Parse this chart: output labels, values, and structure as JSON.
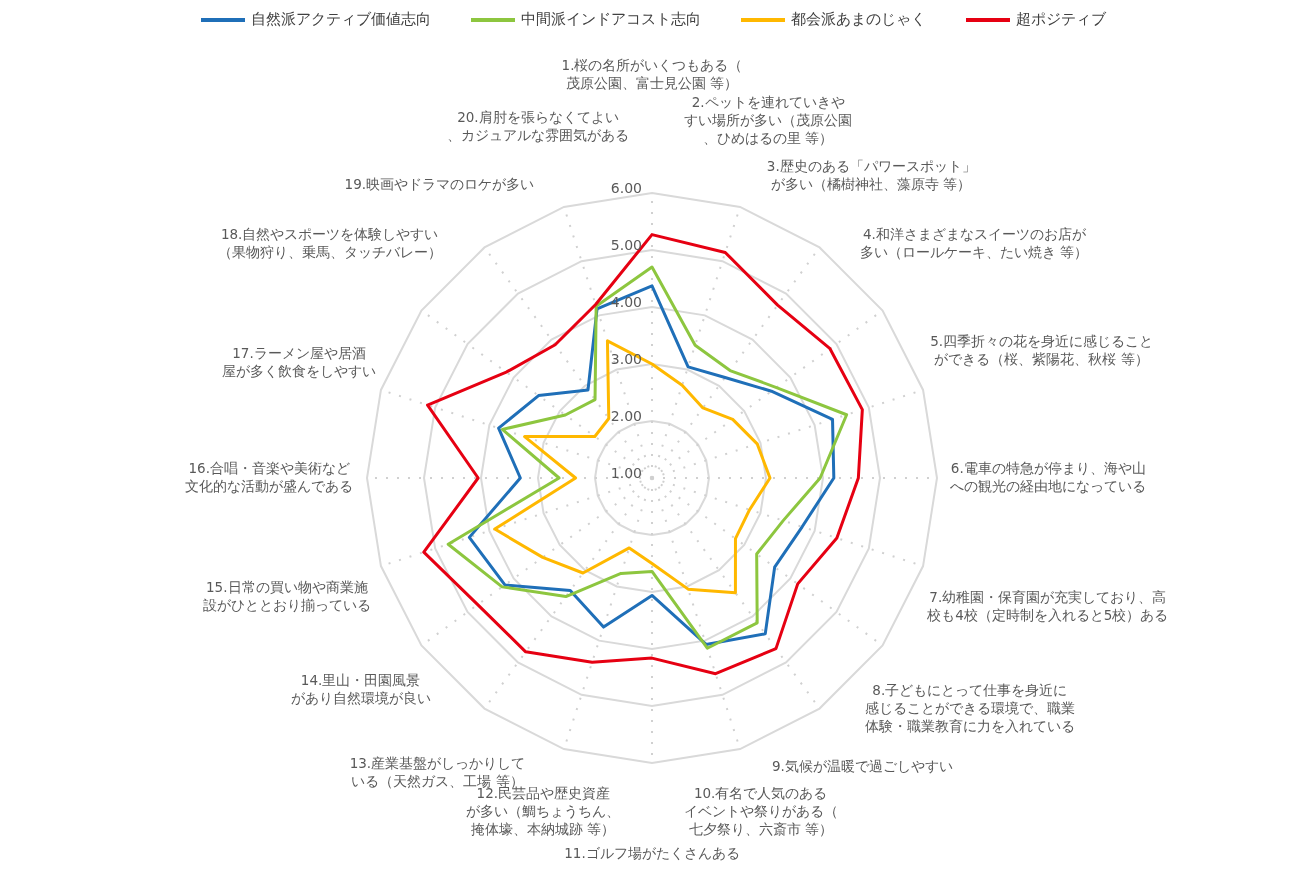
{
  "chart_data": {
    "type": "radar",
    "categories": [
      "1.桜の名所がいくつもある（茂原公園、富士見公園 等）",
      "2.ペットを連れていきやすい場所が多い（茂原公園、ひめはるの里 等）",
      "3.歴史のある「パワースポット」が多い（橘樹神社、藻原寺 等）",
      "4.和洋さまざまなスイーツのお店が多い（ロールケーキ、たい焼き 等）",
      "5.四季折々の花を身近に感じることができる（桜、紫陽花、秋桜 等）",
      "6.電車の特急が停まり、海や山への観光の経由地になっている",
      "7.幼稚園・保育園が充実しており、高校も4校（定時制を入れると5校）ある",
      "8.子どもにとって仕事を身近に感じることができる環境で、職業体験・職業教育に力を入れている",
      "9.気候が温暖で過ごしやすい",
      "10.有名で人気のあるイベントや祭りがある（七夕祭り、六斎市 等）",
      "11.ゴルフ場がたくさんある",
      "12.民芸品や歴史資産が多い（鯛ちょうちん、掩体壕、本納城跡 等）",
      "13.産業基盤がしっかりしている（天然ガス、工場 等）",
      "14.里山・田園風景があり自然環境が良い",
      "15.日常の買い物や商業施設がひととおり揃っている",
      "16.合唱・音楽や美術など文化的な活動が盛んである",
      "17.ラーメン屋や居酒屋が多く飲食をしやすい",
      "18.自然やスポーツを体験しやすい（果物狩り、乗馬、タッチバレー）",
      "19.映画やドラマのロケが多い",
      "20.肩肘を張らなくてよい、カジュアルな雰囲気がある"
    ],
    "series": [
      {
        "name": "自然派アクティブ価値志向",
        "color": "#1f6fb8",
        "values": [
          4.37,
          3.05,
          3.18,
          3.59,
          4.33,
          4.19,
          3.77,
          3.66,
          4.38,
          4.07,
          3.06,
          3.75,
          3.44,
          4.19,
          4.37,
          3.31,
          3.83,
          3.46,
          2.91,
          4.12
        ]
      },
      {
        "name": "中間派インドアコスト志向",
        "color": "#8dc63f",
        "values": [
          4.7,
          3.45,
          3.33,
          3.7,
          4.59,
          3.95,
          3.42,
          3.27,
          4.14,
          4.14,
          2.64,
          2.76,
          3.57,
          4.25,
          4.76,
          2.63,
          3.76,
          2.88,
          2.7,
          4.17
        ]
      },
      {
        "name": "都会派あまのじゃく",
        "color": "#ffb800",
        "values": [
          3.0,
          2.71,
          2.52,
          2.75,
          2.94,
          3.07,
          2.8,
          2.81,
          3.49,
          3.05,
          2.5,
          2.29,
          3.06,
          3.37,
          3.9,
          2.34,
          3.35,
          2.24,
          2.29,
          3.53
        ]
      },
      {
        "name": "超ポジティブ",
        "color": "#e60012",
        "values": [
          5.27,
          5.16,
          4.75,
          4.86,
          4.88,
          4.62,
          4.41,
          4.16,
          4.7,
          4.61,
          4.16,
          4.4,
          4.77,
          4.78,
          5.21,
          4.05,
          5.14,
          4.16,
          3.89,
          4.2
        ]
      }
    ],
    "ylim": [
      1,
      6
    ],
    "yticks": [
      {
        "value": 1,
        "label": "1.00"
      },
      {
        "value": 2,
        "label": "2.00"
      },
      {
        "value": 3,
        "label": "3.00"
      },
      {
        "value": 4,
        "label": "4.00"
      },
      {
        "value": 5,
        "label": "5.00"
      },
      {
        "value": 6,
        "label": "6.00"
      }
    ],
    "grid": true,
    "legend": "top",
    "marker": "none",
    "line_style": "solid"
  }
}
